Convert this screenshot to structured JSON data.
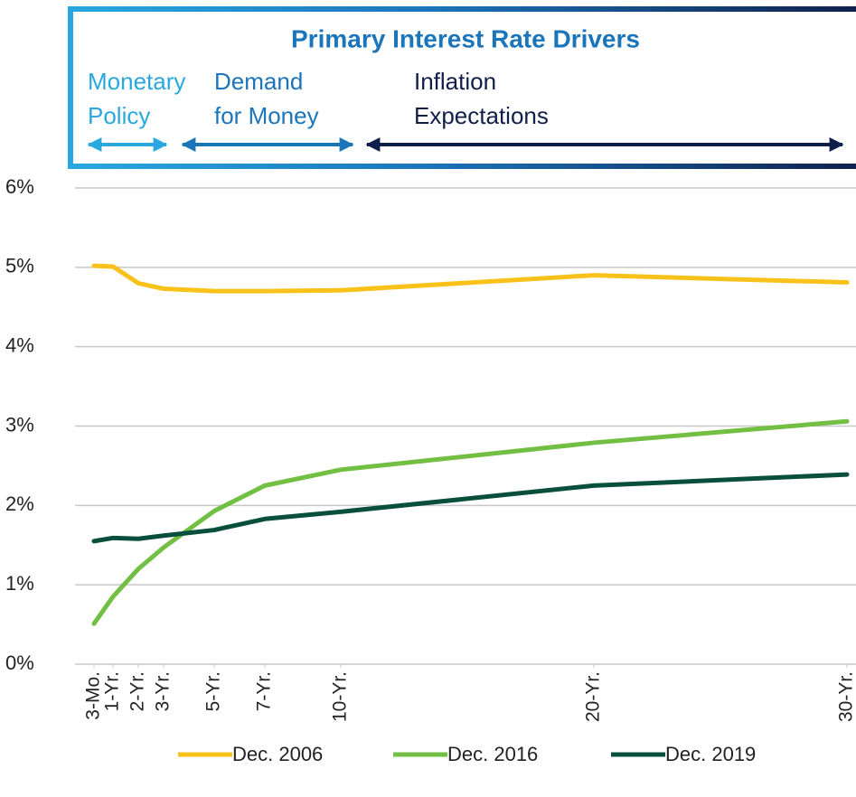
{
  "chart_data": {
    "type": "line",
    "title": "Primary Interest Rate Drivers",
    "drivers": [
      {
        "lines": [
          "Monetary",
          "Policy"
        ],
        "color": "#29a8e0"
      },
      {
        "lines": [
          "Demand",
          "for Money"
        ],
        "color": "#1b75bb"
      },
      {
        "lines": [
          "Inflation",
          "Expectations"
        ],
        "color": "#0f1f4a"
      }
    ],
    "x": [
      0.25,
      1,
      2,
      3,
      5,
      7,
      10,
      20,
      30
    ],
    "xlim": [
      0,
      30
    ],
    "xticks": [
      {
        "value": 0.25,
        "label": "3-Mo."
      },
      {
        "value": 1,
        "label": "1-Yr."
      },
      {
        "value": 2,
        "label": "2-Yr."
      },
      {
        "value": 3,
        "label": "3-Yr."
      },
      {
        "value": 5,
        "label": "5-Yr."
      },
      {
        "value": 7,
        "label": "7-Yr."
      },
      {
        "value": 10,
        "label": "10-Yr."
      },
      {
        "value": 20,
        "label": "20-Yr."
      },
      {
        "value": 30,
        "label": "30-Yr."
      }
    ],
    "ylim": [
      0,
      6
    ],
    "yticks": [
      {
        "value": 0,
        "label": "0%"
      },
      {
        "value": 1,
        "label": "1%"
      },
      {
        "value": 2,
        "label": "2%"
      },
      {
        "value": 3,
        "label": "3%"
      },
      {
        "value": 4,
        "label": "4%"
      },
      {
        "value": 5,
        "label": "5%"
      },
      {
        "value": 6,
        "label": "6%"
      }
    ],
    "grid": true,
    "legend": "bottom",
    "series": [
      {
        "name": "Dec. 2006",
        "color": "#f9c21b",
        "values": [
          5.02,
          5.01,
          4.8,
          4.73,
          4.7,
          4.7,
          4.71,
          4.9,
          4.81
        ]
      },
      {
        "name": "Dec. 2016",
        "color": "#72bf44",
        "values": [
          0.51,
          0.85,
          1.2,
          1.47,
          1.93,
          2.25,
          2.45,
          2.79,
          3.06
        ]
      },
      {
        "name": "Dec. 2019",
        "color": "#0a4f3c",
        "values": [
          1.55,
          1.59,
          1.58,
          1.62,
          1.69,
          1.83,
          1.92,
          2.25,
          2.39
        ]
      }
    ]
  }
}
